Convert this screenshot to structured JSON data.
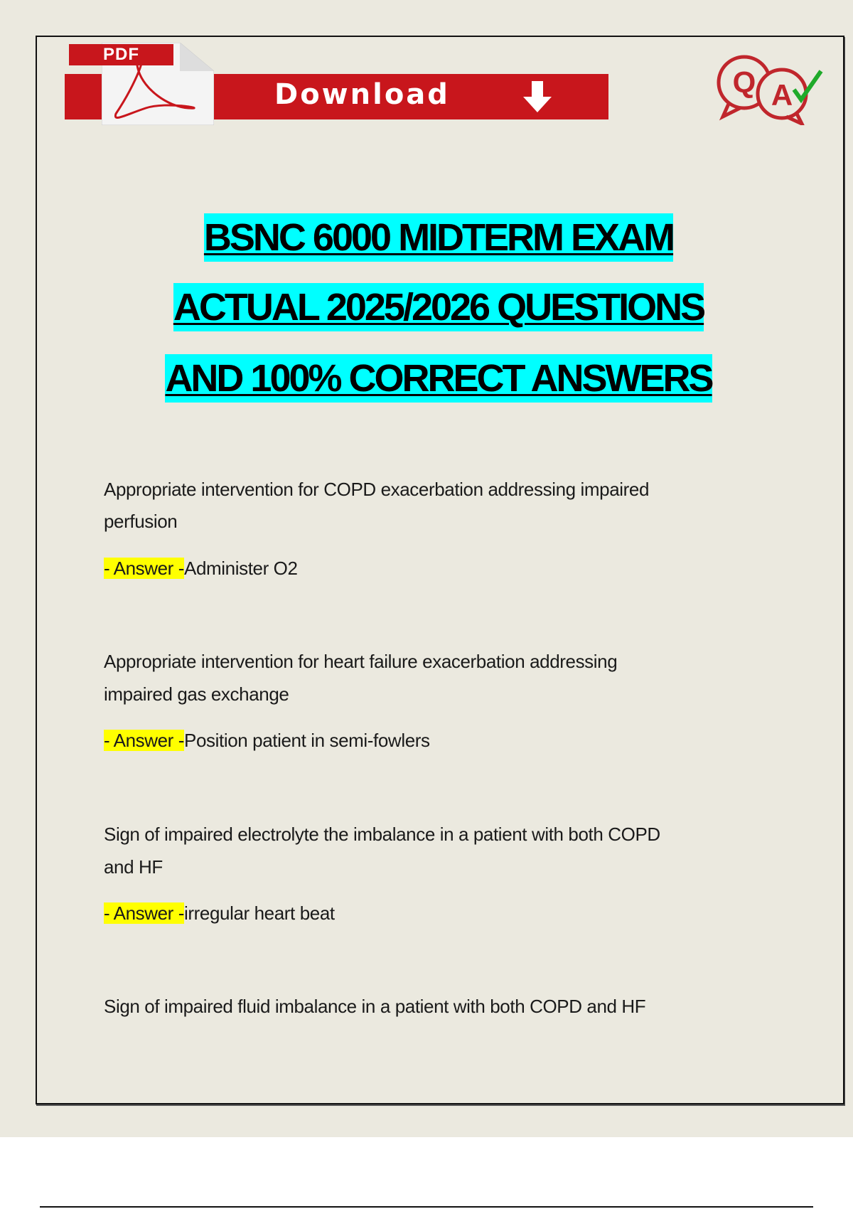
{
  "banner": {
    "pdf_tag": "PDF",
    "download_label": "Download",
    "brand_color": "#c8161c"
  },
  "qa_logo": {
    "q": "Q",
    "a": "A"
  },
  "title": {
    "lines": [
      "BSNC 6000 MIDTERM EXAM",
      "ACTUAL 2025/2026 QUESTIONS",
      "AND 100% CORRECT ANSWERS"
    ],
    "highlight_color": "#00ffff"
  },
  "answer_prefix": "- Answer -",
  "qa": [
    {
      "question_lines": [
        "Appropriate intervention for COPD exacerbation addressing impaired",
        "perfusion"
      ],
      "answer": "Administer O2"
    },
    {
      "question_lines": [
        "Appropriate intervention for heart failure exacerbation addressing",
        "impaired gas exchange"
      ],
      "answer": "Position patient in semi-fowlers"
    },
    {
      "question_lines": [
        "Sign of impaired electrolyte the imbalance in a patient with both COPD",
        "and HF"
      ],
      "answer": "irregular heart beat"
    },
    {
      "question_lines": [
        "Sign of impaired fluid imbalance in a patient with both COPD and HF"
      ]
    }
  ]
}
